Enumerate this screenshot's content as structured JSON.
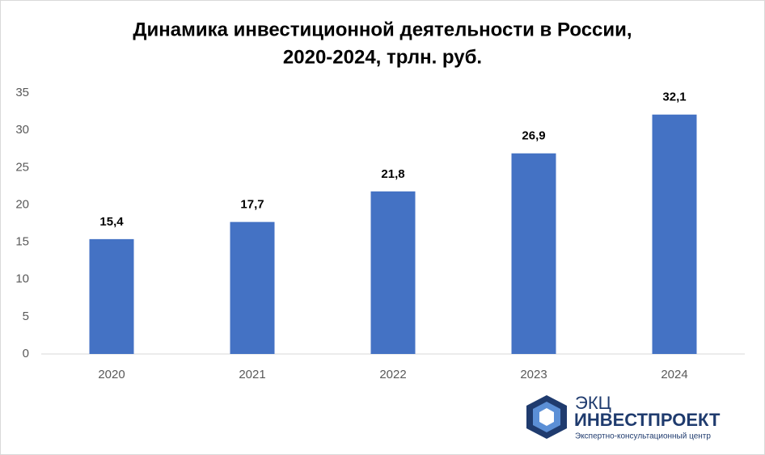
{
  "chart_data": {
    "type": "bar",
    "title": [
      "Динамика инвестиционной деятельности в России,",
      "2020-2024, трлн. руб."
    ],
    "categories": [
      "2020",
      "2021",
      "2022",
      "2023",
      "2024"
    ],
    "values": [
      15.4,
      17.7,
      21.8,
      26.9,
      32.1
    ],
    "value_labels": [
      "15,4",
      "17,7",
      "21,8",
      "26,9",
      "32,1"
    ],
    "color": "#4472c4",
    "ylim": [
      0,
      35
    ],
    "yticks": [
      0,
      5,
      10,
      15,
      20,
      25,
      30,
      35
    ],
    "grid": false
  },
  "logo": {
    "name": "ЭКЦ",
    "brand": "ИНВЕСТПРОЕКТ",
    "tagline": "Экспертно-консультационный центр"
  }
}
